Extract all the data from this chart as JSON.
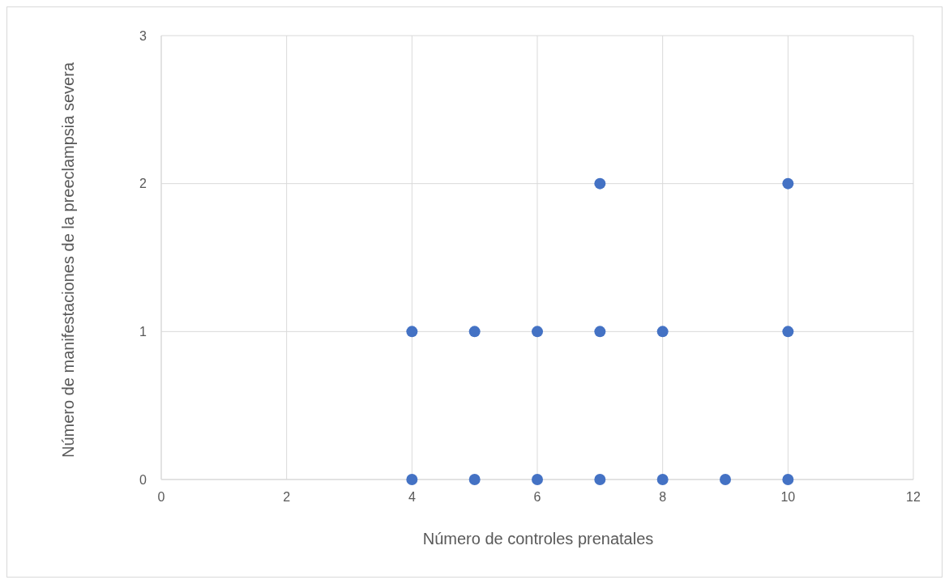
{
  "chart_data": {
    "type": "scatter",
    "xlabel": "Número de controles prenatales",
    "ylabel": "Número de manifestaciones de la preeclampsia severa",
    "x": [
      4,
      5,
      6,
      7,
      8,
      10,
      7,
      10,
      4,
      5,
      6,
      7,
      8,
      9,
      10
    ],
    "values": [
      1,
      1,
      1,
      1,
      1,
      1,
      2,
      2,
      0,
      0,
      0,
      0,
      0,
      0,
      0
    ],
    "color": "#4472c4",
    "xlim": [
      0,
      12
    ],
    "xticks": [
      0,
      2,
      4,
      6,
      8,
      10,
      12
    ],
    "ylim": [
      0,
      3
    ],
    "yticks": [
      0,
      1,
      2,
      3
    ],
    "grid": true,
    "marker": "circle"
  }
}
